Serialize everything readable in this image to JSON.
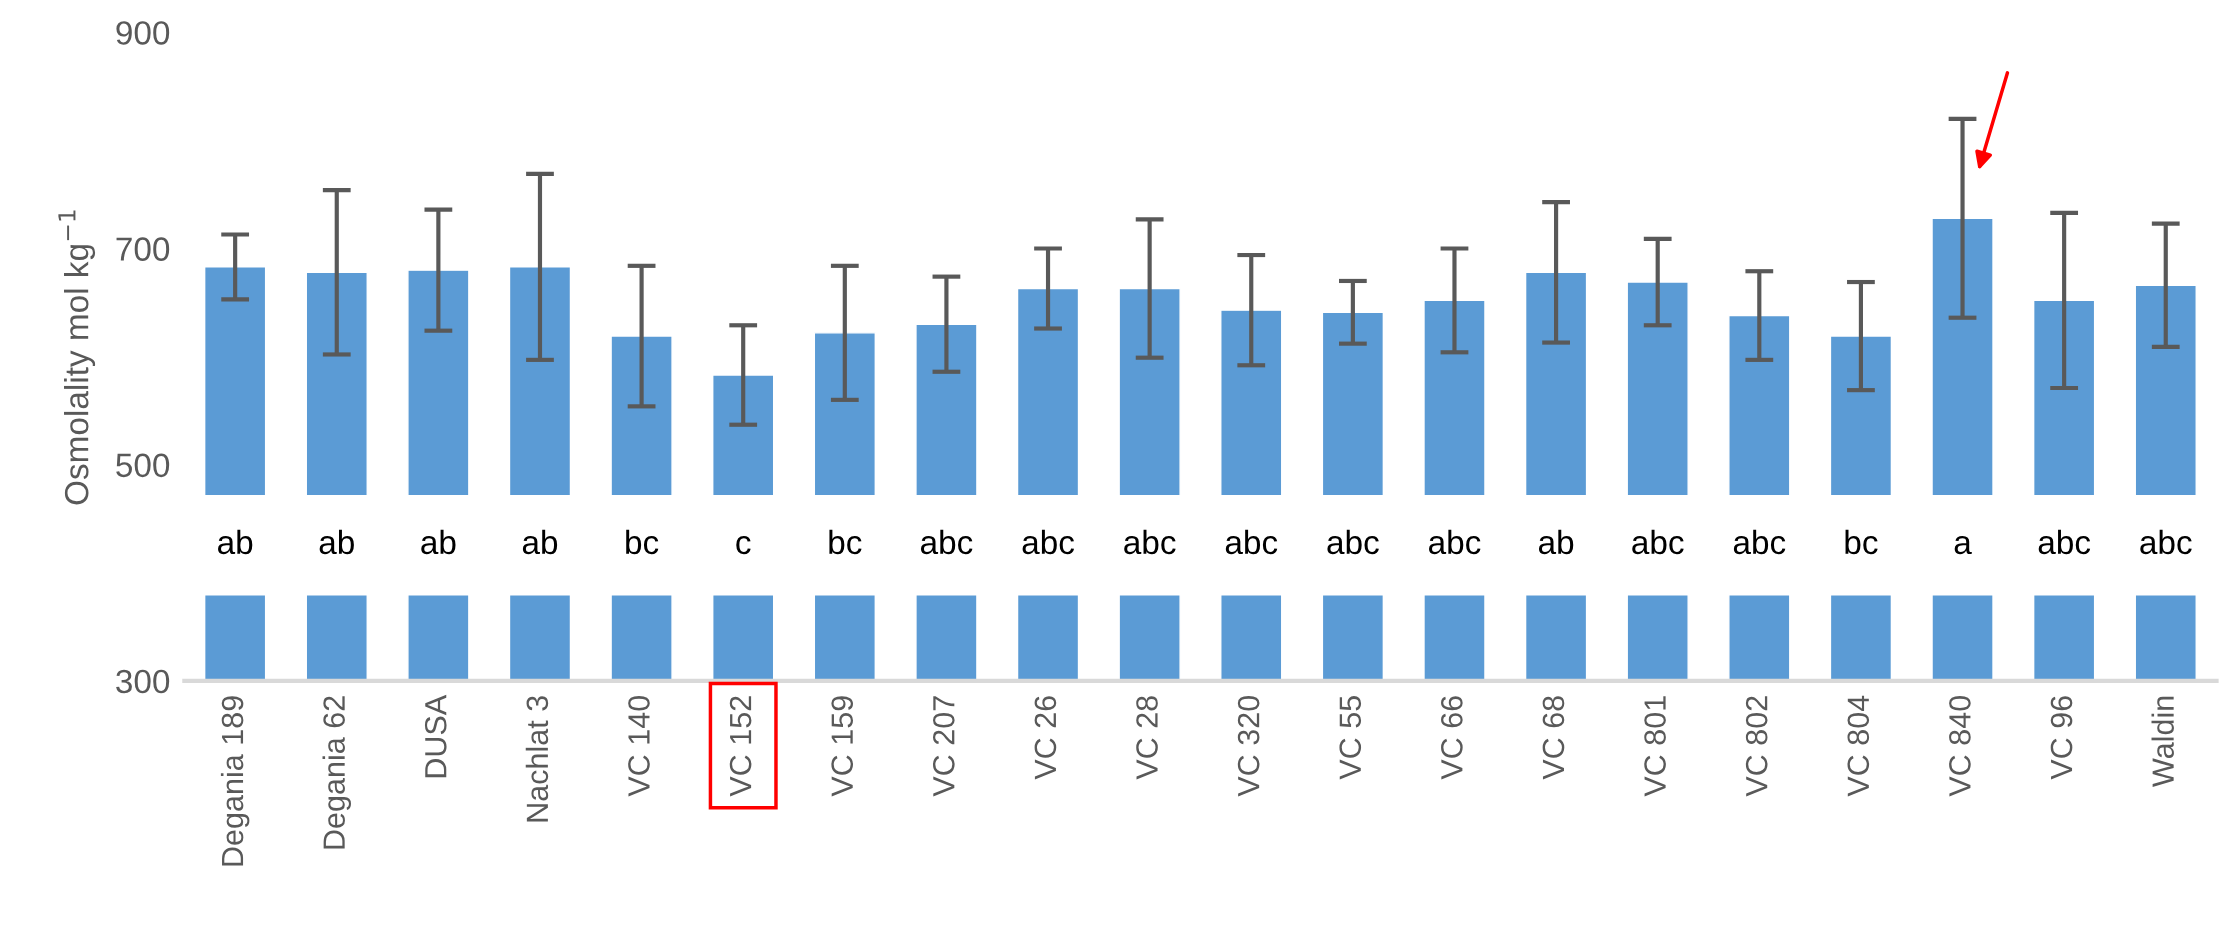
{
  "chart_data": {
    "type": "bar",
    "ylabel": "Osmolality mol kg$^{−1}$",
    "categories": [
      "Degania 189",
      "Degania 62",
      "DUSA",
      "Nachlat 3",
      "VC 140",
      "VC 152",
      "VC 159",
      "VC 207",
      "VC 26",
      "VC 28",
      "VC 320",
      "VC 55",
      "VC 66",
      "VC 68",
      "VC 801",
      "VC 802",
      "VC 804",
      "VC 840",
      "VC 96",
      "Waldin"
    ],
    "values": [
      683,
      678,
      680,
      683,
      619,
      583,
      622,
      630,
      663,
      663,
      643,
      641,
      652,
      678,
      669,
      638,
      619,
      728,
      652,
      666
    ],
    "errors": [
      30,
      76,
      56,
      86,
      65,
      46,
      62,
      44,
      37,
      64,
      51,
      29,
      48,
      65,
      40,
      41,
      50,
      92,
      81,
      57
    ],
    "color": "#5b9bd5",
    "ylim": [
      300,
      900
    ],
    "yticks": [
      300,
      500,
      700,
      900
    ],
    "bands": [
      {
        "axis": "y",
        "from": 379,
        "to": 472,
        "color": "#ffffff"
      }
    ],
    "annotations": [
      "ab",
      "ab",
      "ab",
      "ab",
      "bc",
      "c",
      "bc",
      "abc",
      "abc",
      "abc",
      "abc",
      "abc",
      "abc",
      "ab",
      "abc",
      "abc",
      "bc",
      "a",
      "abc",
      "abc"
    ],
    "grid": false
  }
}
